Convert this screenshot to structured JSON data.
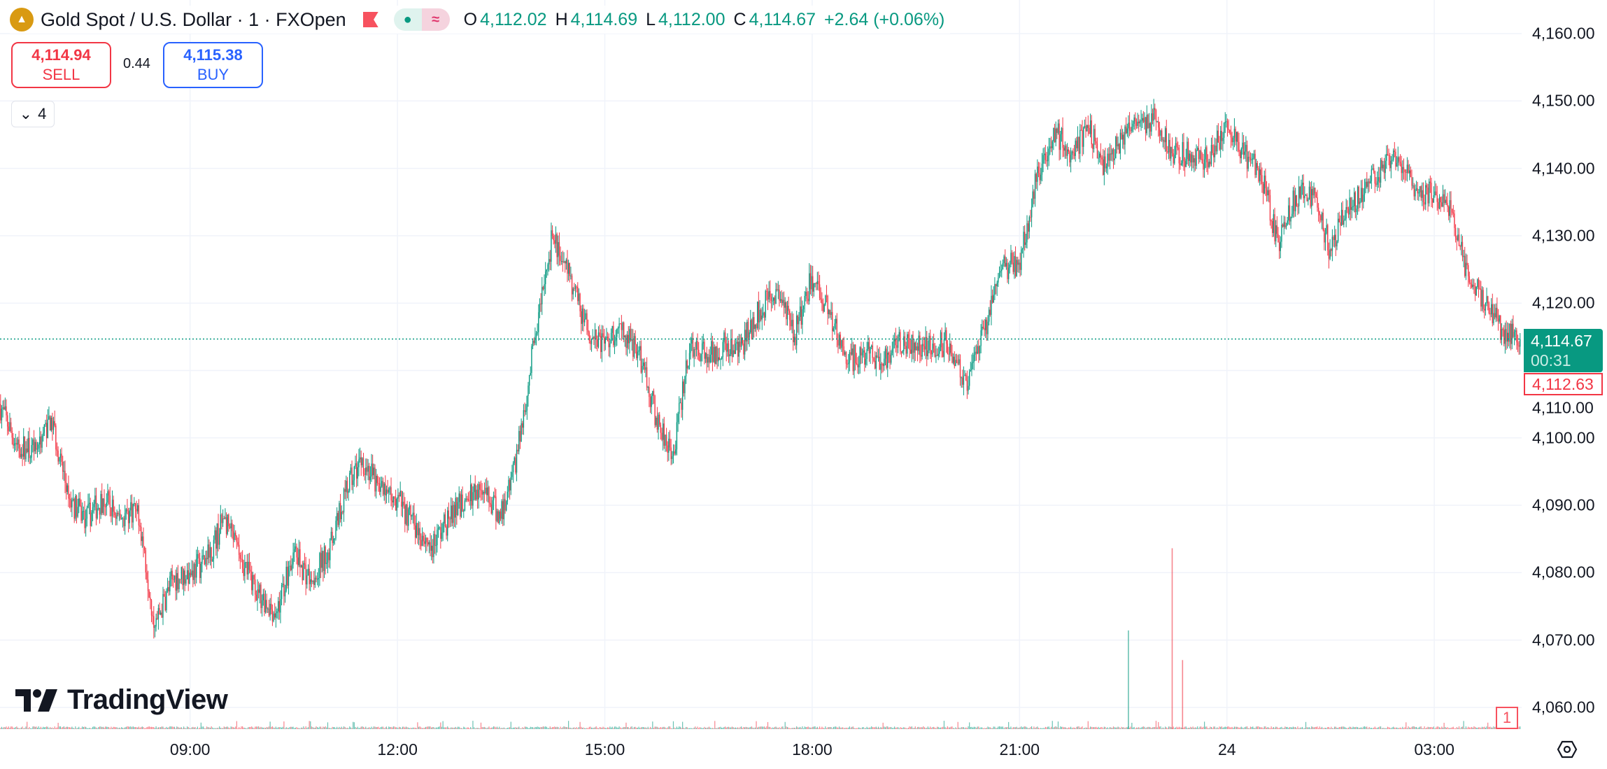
{
  "header": {
    "symbol_title": "Gold Spot / U.S. Dollar · 1 · FXOpen",
    "ohlc": {
      "o_label": "O",
      "o": "4,112.02",
      "h_label": "H",
      "h": "4,114.69",
      "l_label": "L",
      "l": "4,112.00",
      "c_label": "C",
      "c": "4,114.67",
      "change": "+2.64 (+0.06%)"
    },
    "market_status_icon": "dot-icon",
    "data_icon": "approx-icon",
    "change_color": "#089981"
  },
  "trade": {
    "sell_price": "4,114.94",
    "sell_label": "SELL",
    "spread": "0.44",
    "buy_price": "4,115.38",
    "buy_label": "BUY"
  },
  "indicators_toggle": {
    "count": "4"
  },
  "price_axis": {
    "labels": [
      "4,160.00",
      "4,150.00",
      "4,140.00",
      "4,130.00",
      "4,120.00",
      "4,110.00",
      "4,100.00",
      "4,090.00",
      "4,080.00",
      "4,070.00",
      "4,060.00"
    ],
    "last_price": "4,114.67",
    "countdown": "00:31",
    "bid_price": "4,112.63",
    "volume_label": "1"
  },
  "time_axis": {
    "labels": [
      "09:00",
      "12:00",
      "15:00",
      "18:00",
      "21:00",
      "24",
      "03:00"
    ]
  },
  "branding": {
    "logo_text": "TradingView"
  },
  "colors": {
    "up": "#089981",
    "down": "#F23645",
    "grid": "#f0f3fa"
  },
  "chart_data": {
    "type": "candlestick",
    "interval": "1 minute",
    "ylim": [
      4056,
      4162
    ],
    "x_range": [
      "06:15",
      "04:15"
    ],
    "grid": true,
    "close_every_15min_from_0615": [
      4105,
      4099,
      4098,
      4103,
      4091,
      4088,
      4091,
      4088,
      4090,
      4072,
      4079,
      4080,
      4082,
      4088,
      4082,
      4077,
      4074,
      4083,
      4079,
      4083,
      4092,
      4097,
      4092,
      4091,
      4087,
      4084,
      4088,
      4091,
      4092,
      4088,
      4098,
      4115,
      4130,
      4124,
      4116,
      4114,
      4116,
      4113,
      4103,
      4098,
      4114,
      4112,
      4114,
      4114,
      4119,
      4122,
      4115,
      4124,
      4119,
      4111,
      4113,
      4111,
      4115,
      4113,
      4114,
      4114,
      4107,
      4116,
      4125,
      4126,
      4138,
      4146,
      4142,
      4146,
      4140,
      4145,
      4147,
      4147,
      4142,
      4142,
      4141,
      4147,
      4142,
      4139,
      4129,
      4136,
      4136,
      4128,
      4134,
      4137,
      4140,
      4141,
      4137,
      4136,
      4134,
      4124,
      4120,
      4116,
      4114.67
    ],
    "session_high": 4154,
    "session_low": 4066,
    "volume_spikes": [
      {
        "time": "22:34",
        "value": 60
      },
      {
        "time": "23:12",
        "value": 110
      },
      {
        "time": "23:21",
        "value": 42
      }
    ]
  }
}
